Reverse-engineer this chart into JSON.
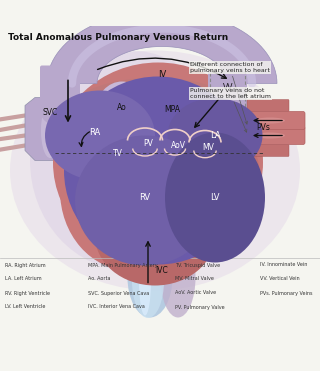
{
  "title": "Total Anomalous Pulmonary Venous Return",
  "bg_color": "#f5f5f0",
  "legend_items_col1": [
    "RA. Right Atrium",
    "LA. Left Atrium",
    "RV. Right Ventricle",
    "LV. Left Ventricle"
  ],
  "legend_items_col2": [
    "MPA. Main Pulmonary Artery",
    "Ao. Aorta",
    "SVC. Superior Vena Cava",
    "IVC. Interior Vena Cava"
  ],
  "legend_items_col3": [
    "TV. Tricuspid Valve",
    "MV. Mitral Valve",
    "AoV. Aortic Valve",
    "PV. Pulmonary Valve"
  ],
  "legend_items_col4": [
    "IV. Innominate Vein",
    "VV. Vertical Vein",
    "PVs. Pulmonary Veins",
    ""
  ],
  "annot1_text": "Different connection of\npulmonary veins to heart",
  "annot2_text": "Pulmonary veins do not\nconnect to the left atrium",
  "heart_outer": "#c8847a",
  "heart_inner": "#6a5aaa",
  "heart_inner2": "#5a4a99",
  "vessel_purple_light": "#c0b0d8",
  "vessel_pink": "#d8a0a0",
  "vessel_blue_light": "#b8cce8",
  "svc_color": "#b0a8cc",
  "ivc_color": "#b8cce8",
  "label_dark": "#111111",
  "label_white": "#ffffff"
}
